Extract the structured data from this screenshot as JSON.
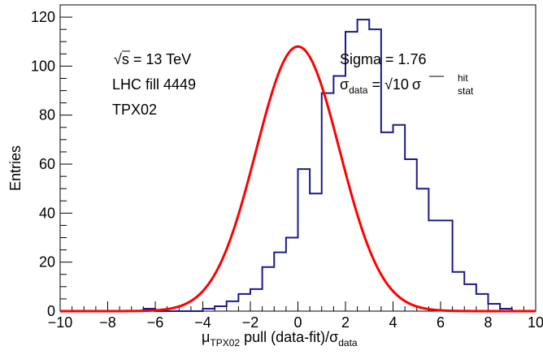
{
  "chart_data": {
    "type": "histogram",
    "ylabel": "Entries",
    "xlabel": {
      "mu": "μ",
      "mu_sub": "TPX02",
      "mid": " pull (data-fit)/",
      "sigma": "σ",
      "sigma_sub": "data"
    },
    "xlim": [
      -10,
      10
    ],
    "ylim": [
      0,
      125
    ],
    "x_ticks": [
      "−10",
      "−8",
      "−6",
      "−4",
      "−2",
      "0",
      "2",
      "4",
      "6",
      "8",
      "10"
    ],
    "x_tick_values": [
      -10,
      -8,
      -6,
      -4,
      -2,
      0,
      2,
      4,
      6,
      8,
      10
    ],
    "y_ticks": [
      "0",
      "20",
      "40",
      "60",
      "80",
      "100",
      "120"
    ],
    "y_tick_values": [
      0,
      20,
      40,
      60,
      80,
      100,
      120
    ],
    "bin_width": 0.5,
    "bin_edges_start": -10,
    "histogram_values": [
      0,
      0,
      0,
      0,
      0,
      0,
      0,
      1,
      0,
      0,
      0,
      0,
      1,
      2,
      4,
      7,
      9,
      18,
      24,
      30,
      58,
      48,
      89,
      96,
      114,
      119,
      115,
      73,
      76,
      62,
      50,
      37,
      37,
      16,
      11,
      7,
      3,
      1,
      0,
      0
    ],
    "fit": {
      "type": "gaussian",
      "mean": 0.0,
      "sigma": 1.76,
      "amplitude": 108
    },
    "annotations": {
      "sqrt_symbol": "√",
      "energy_var": "s",
      "energy_rest": " = 13 TeV",
      "fill": "LHC fill 4449",
      "detector": "TPX02",
      "sigma_text": "Sigma = 1.76",
      "sigma_data_sym": "σ",
      "sigma_data_sub": "data",
      "eq": " = ",
      "sqrt10_symbol": "√",
      "sqrt10_value": "10",
      "sigma_stat_sym": "σ",
      "sigma_stat_sup": "hit",
      "sigma_stat_sub": "stat"
    },
    "colors": {
      "histogram": "#1a1a8c",
      "fit": "#ff0000"
    },
    "grid": false
  }
}
